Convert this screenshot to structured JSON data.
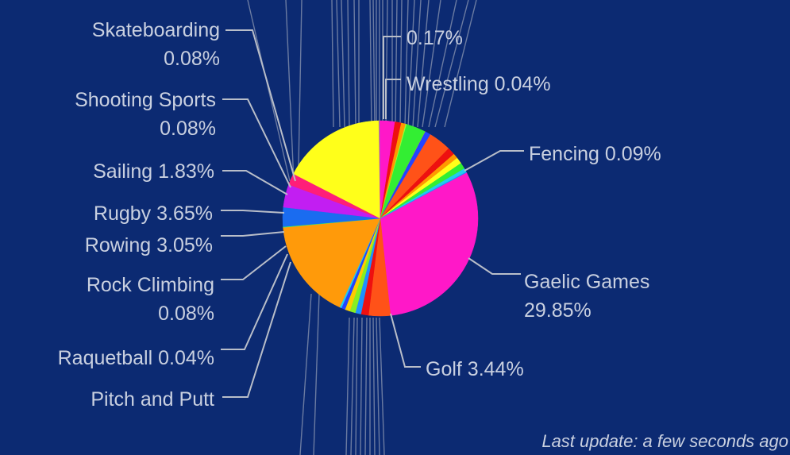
{
  "chart_data": {
    "type": "pie",
    "slices": [
      {
        "label": "Gaelic Games",
        "value": "29.85%",
        "pct": 29.85,
        "color": "#ff18c8",
        "show": true
      },
      {
        "label": "Golf",
        "value": "3.44%",
        "pct": 3.44,
        "color": "#ff5218",
        "show": true
      },
      {
        "label": "",
        "value": "",
        "pct": 1.2,
        "color": "#ee1010",
        "show": false
      },
      {
        "label": "",
        "value": "",
        "pct": 0.9,
        "color": "#1e90ff",
        "show": false
      },
      {
        "label": "",
        "value": "",
        "pct": 0.9,
        "color": "#88ee22",
        "show": false
      },
      {
        "label": "",
        "value": "",
        "pct": 0.8,
        "color": "#ffcc00",
        "show": false
      },
      {
        "label": "",
        "value": "",
        "pct": 0.6,
        "color": "#2244ff",
        "show": false
      },
      {
        "label": "Pitch and Putt",
        "value": "",
        "pct": 0.3,
        "color": "#22ccee",
        "show": true
      },
      {
        "label": "",
        "value": "",
        "pct": 16.0,
        "color": "#ff9a0a",
        "show": false
      },
      {
        "label": "Raquetball",
        "value": "0.04%",
        "pct": 0.04,
        "color": "#55dd88",
        "show": true
      },
      {
        "label": "Rock Climbing",
        "value": "0.08%",
        "pct": 0.08,
        "color": "#33ee55",
        "show": true
      },
      {
        "label": "Rowing",
        "value": "3.05%",
        "pct": 3.05,
        "color": "#1a6cf0",
        "show": true
      },
      {
        "label": "Rugby",
        "value": "3.65%",
        "pct": 3.65,
        "color": "#c21ef2",
        "show": true
      },
      {
        "label": "Sailing",
        "value": "1.83%",
        "pct": 1.83,
        "color": "#ff1e78",
        "show": true
      },
      {
        "label": "",
        "value": "",
        "pct": 16.5,
        "color": "#ffff1a",
        "show": false
      },
      {
        "label": "Shooting Sports",
        "value": "0.08%",
        "pct": 0.08,
        "color": "#ff9900",
        "show": true
      },
      {
        "label": "Skateboarding",
        "value": "0.08%",
        "pct": 0.08,
        "color": "#22aaff",
        "show": true
      },
      {
        "label": "",
        "value": "",
        "pct": 2.4,
        "color": "#ff18c8",
        "show": false
      },
      {
        "label": "",
        "value": "",
        "pct": 1.0,
        "color": "#ee1010",
        "show": false
      },
      {
        "label": "",
        "value": "",
        "pct": 0.7,
        "color": "#ff9900",
        "show": false
      },
      {
        "label": "",
        "value": "0.17%",
        "pct": 0.17,
        "color": "#99ff33",
        "show": true
      },
      {
        "label": "",
        "value": "",
        "pct": 3.1,
        "color": "#33ee33",
        "show": false
      },
      {
        "label": "Wrestling",
        "value": "0.04%",
        "pct": 0.04,
        "color": "#ffaa00",
        "show": true
      },
      {
        "label": "",
        "value": "",
        "pct": 0.9,
        "color": "#2244ff",
        "show": false
      },
      {
        "label": "",
        "value": "",
        "pct": 3.6,
        "color": "#ff5218",
        "show": false
      },
      {
        "label": "",
        "value": "",
        "pct": 1.2,
        "color": "#ee1010",
        "show": false
      },
      {
        "label": "",
        "value": "",
        "pct": 0.8,
        "color": "#ff9900",
        "show": false
      },
      {
        "label": "",
        "value": "",
        "pct": 1.0,
        "color": "#ffff1a",
        "show": false
      },
      {
        "label": "",
        "value": "",
        "pct": 1.0,
        "color": "#33ee33",
        "show": false
      },
      {
        "label": "",
        "value": "",
        "pct": 0.6,
        "color": "#22ccee",
        "show": false
      },
      {
        "label": "Fencing",
        "value": "0.09%",
        "pct": 0.09,
        "color": "#1e90ff",
        "show": true
      }
    ],
    "label_line_color": "#b9bec9",
    "background": "#0c2a72"
  },
  "footer": {
    "last_update": "Last update: a few seconds ago"
  }
}
